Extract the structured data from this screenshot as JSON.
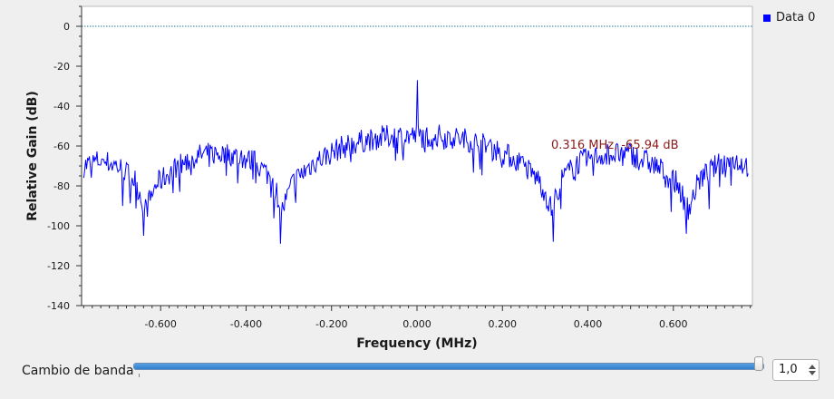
{
  "chart_data": {
    "type": "line",
    "title": "",
    "xlabel": "Frequency (MHz)",
    "ylabel": "Relative Gain (dB)",
    "xlim": [
      -0.785,
      0.785
    ],
    "ylim": [
      -140,
      10
    ],
    "x_ticks": [
      -0.6,
      -0.4,
      -0.2,
      0.0,
      0.2,
      0.4,
      0.6
    ],
    "x_tick_labels": [
      "-0.600",
      "-0.400",
      "-0.200",
      "0.000",
      "0.200",
      "0.400",
      "0.600"
    ],
    "y_ticks": [
      0,
      -20,
      -40,
      -60,
      -80,
      -100,
      -120,
      -140
    ],
    "y_tick_labels": [
      "0",
      "-20",
      "-40",
      "-60",
      "-80",
      "-100",
      "-120",
      "-140"
    ],
    "grid": false,
    "legend_position": "top-right",
    "reference_line": {
      "y": 0,
      "style": "dotted",
      "color": "#1f7a9a"
    },
    "annotation": {
      "text": "0.316 MHz, -65.94 dB",
      "x": 0.316,
      "y": -65.94,
      "color": "#8b1a1a"
    },
    "series": [
      {
        "name": "Data 0",
        "color": "#0000ff",
        "envelope": [
          {
            "x": -0.78,
            "y": -70
          },
          {
            "x": -0.74,
            "y": -67
          },
          {
            "x": -0.7,
            "y": -70
          },
          {
            "x": -0.66,
            "y": -77
          },
          {
            "x": -0.635,
            "y": -92
          },
          {
            "x": -0.61,
            "y": -79
          },
          {
            "x": -0.56,
            "y": -70
          },
          {
            "x": -0.5,
            "y": -64
          },
          {
            "x": -0.44,
            "y": -64
          },
          {
            "x": -0.38,
            "y": -68
          },
          {
            "x": -0.34,
            "y": -76
          },
          {
            "x": -0.315,
            "y": -92
          },
          {
            "x": -0.29,
            "y": -78
          },
          {
            "x": -0.24,
            "y": -68
          },
          {
            "x": -0.18,
            "y": -61
          },
          {
            "x": -0.12,
            "y": -57
          },
          {
            "x": -0.06,
            "y": -55
          },
          {
            "x": -0.02,
            "y": -55
          },
          {
            "x": 0.02,
            "y": -55
          },
          {
            "x": 0.06,
            "y": -55
          },
          {
            "x": 0.12,
            "y": -57
          },
          {
            "x": 0.18,
            "y": -61
          },
          {
            "x": 0.24,
            "y": -68
          },
          {
            "x": 0.29,
            "y": -78
          },
          {
            "x": 0.315,
            "y": -92
          },
          {
            "x": 0.34,
            "y": -76
          },
          {
            "x": 0.38,
            "y": -68
          },
          {
            "x": 0.44,
            "y": -64
          },
          {
            "x": 0.5,
            "y": -64
          },
          {
            "x": 0.56,
            "y": -70
          },
          {
            "x": 0.61,
            "y": -79
          },
          {
            "x": 0.635,
            "y": -92
          },
          {
            "x": 0.66,
            "y": -77
          },
          {
            "x": 0.7,
            "y": -70
          },
          {
            "x": 0.74,
            "y": -67
          },
          {
            "x": 0.775,
            "y": -70
          }
        ],
        "peaks": [
          {
            "x": 0.0,
            "y": -27
          },
          {
            "x": -0.64,
            "y": -105
          },
          {
            "x": -0.32,
            "y": -109
          },
          {
            "x": 0.32,
            "y": -108
          },
          {
            "x": 0.63,
            "y": -104
          }
        ],
        "noise_amplitude_db": 12
      }
    ]
  },
  "legend": {
    "label": "Data 0"
  },
  "controls": {
    "slider_label": "Cambio de banda",
    "slider_value": "1,0",
    "slider_fraction": 1.0
  }
}
